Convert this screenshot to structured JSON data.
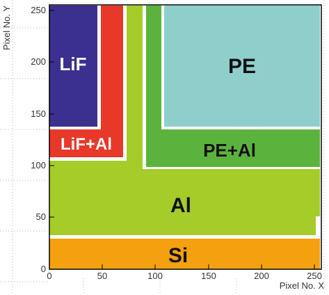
{
  "axes": {
    "x_label": "Pixel No. X",
    "y_label": "Pixel No. Y",
    "x_ticks": [
      "0",
      "50",
      "100",
      "150",
      "200",
      "250"
    ],
    "y_ticks": [
      "0",
      "50",
      "100",
      "150",
      "200",
      "250"
    ],
    "range": [
      0,
      256
    ]
  },
  "regions": [
    {
      "key": "si",
      "label": "Si",
      "color": "#F5A10F",
      "label_color": "#1A1A1A"
    },
    {
      "key": "al",
      "label": "Al",
      "color": "#A6CC2A",
      "label_color": "#1A1A1A"
    },
    {
      "key": "pe_al",
      "label": "PE+Al",
      "color": "#5BB33E",
      "label_color": "#1A1A1A"
    },
    {
      "key": "pe",
      "label": "PE",
      "color": "#8ECFCC",
      "label_color": "#1A1A1A"
    },
    {
      "key": "lif_al",
      "label": "LiF+Al",
      "color": "#E8382A",
      "label_color": "#FFFFFF"
    },
    {
      "key": "lif",
      "label": "LiF",
      "color": "#3B2F8F",
      "label_color": "#FFFFFF"
    }
  ],
  "colors": {
    "frame": "#000000",
    "grid": "#8FA6C8",
    "gap": "#FFFFFF"
  }
}
